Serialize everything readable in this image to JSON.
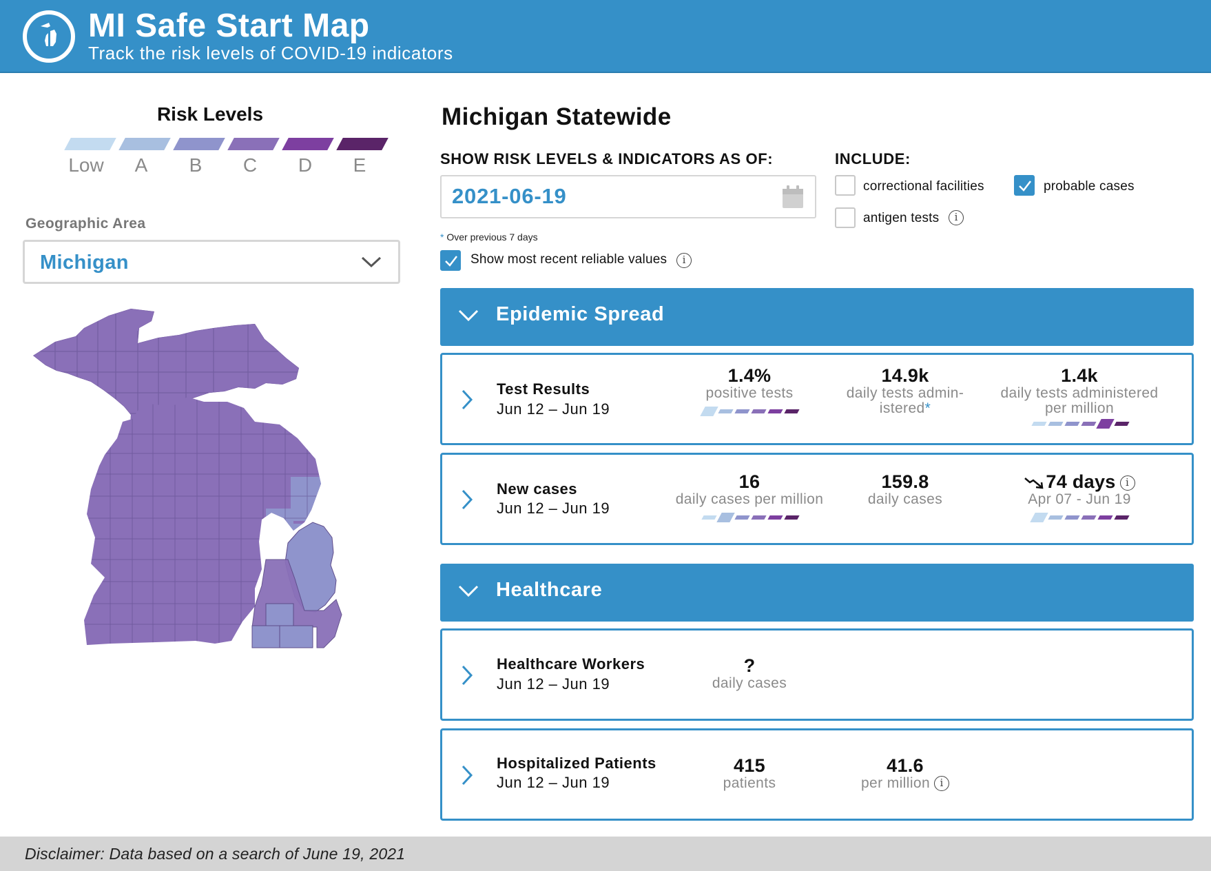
{
  "header": {
    "title": "MI Safe Start Map",
    "subtitle": "Track the risk levels of COVID-19 indicators",
    "logo_icon": "michigan-logo-icon"
  },
  "risk_legend": {
    "title": "Risk Levels",
    "levels": [
      {
        "label": "Low",
        "color": "#c3dbf0"
      },
      {
        "label": "A",
        "color": "#a8bfe0"
      },
      {
        "label": "B",
        "color": "#8f94cc"
      },
      {
        "label": "C",
        "color": "#8a70b8"
      },
      {
        "label": "D",
        "color": "#7d3fa0"
      },
      {
        "label": "E",
        "color": "#5a2468"
      }
    ]
  },
  "geo": {
    "label": "Geographic Area",
    "selected": "Michigan"
  },
  "map": {
    "base_color": "#8a70b8",
    "highlight_color": "#8f94cc"
  },
  "region_title": "Michigan Statewide",
  "asof": {
    "label": "SHOW RISK LEVELS & INDICATORS AS OF:",
    "date": "2021-06-19",
    "footnote_star": "*",
    "footnote": " Over previous 7 days",
    "recent_label": "Show most recent reliable values",
    "recent_checked": true
  },
  "include": {
    "label": "INCLUDE:",
    "options": [
      {
        "label": "correctional facilities",
        "checked": false
      },
      {
        "label": "probable cases",
        "checked": true
      },
      {
        "label": "antigen tests",
        "checked": false
      }
    ]
  },
  "sections": {
    "epidemic": {
      "title": "Epidemic Spread",
      "cards": [
        {
          "title": "Test Results",
          "dates": "Jun 12 – Jun 19",
          "metrics": [
            {
              "value": "1.4%",
              "label": "positive tests",
              "risk_index": 0
            },
            {
              "value": "14.9k",
              "label": "daily tests admin-",
              "label2": "istered",
              "label_star": "*"
            },
            {
              "value": "1.4k",
              "label": "daily tests administered",
              "label2": "per million",
              "risk_index": 4
            }
          ]
        },
        {
          "title": "New cases",
          "dates": "Jun 12 – Jun 19",
          "metrics": [
            {
              "value": "16",
              "label": "daily cases per million",
              "risk_index": 1
            },
            {
              "value": "159.8",
              "label": "daily cases"
            },
            {
              "value": "74 days",
              "label": "Apr 07 - Jun 19",
              "risk_index": 0,
              "trend_icon": "trend-down-arrow-icon"
            }
          ]
        }
      ]
    },
    "healthcare": {
      "title": "Healthcare",
      "cards": [
        {
          "title": "Healthcare Workers",
          "dates": "Jun 12 – Jun 19",
          "metrics": [
            {
              "value": "?",
              "label": "daily cases"
            }
          ]
        },
        {
          "title": "Hospitalized Patients",
          "dates": "Jun 12 – Jun 19",
          "metrics": [
            {
              "value": "415",
              "label": "patients"
            },
            {
              "value": "41.6",
              "label": "per million"
            }
          ]
        }
      ]
    }
  },
  "info_glyph": "i",
  "disclaimer": "Disclaimer: Data based on a search of June 19, 2021"
}
